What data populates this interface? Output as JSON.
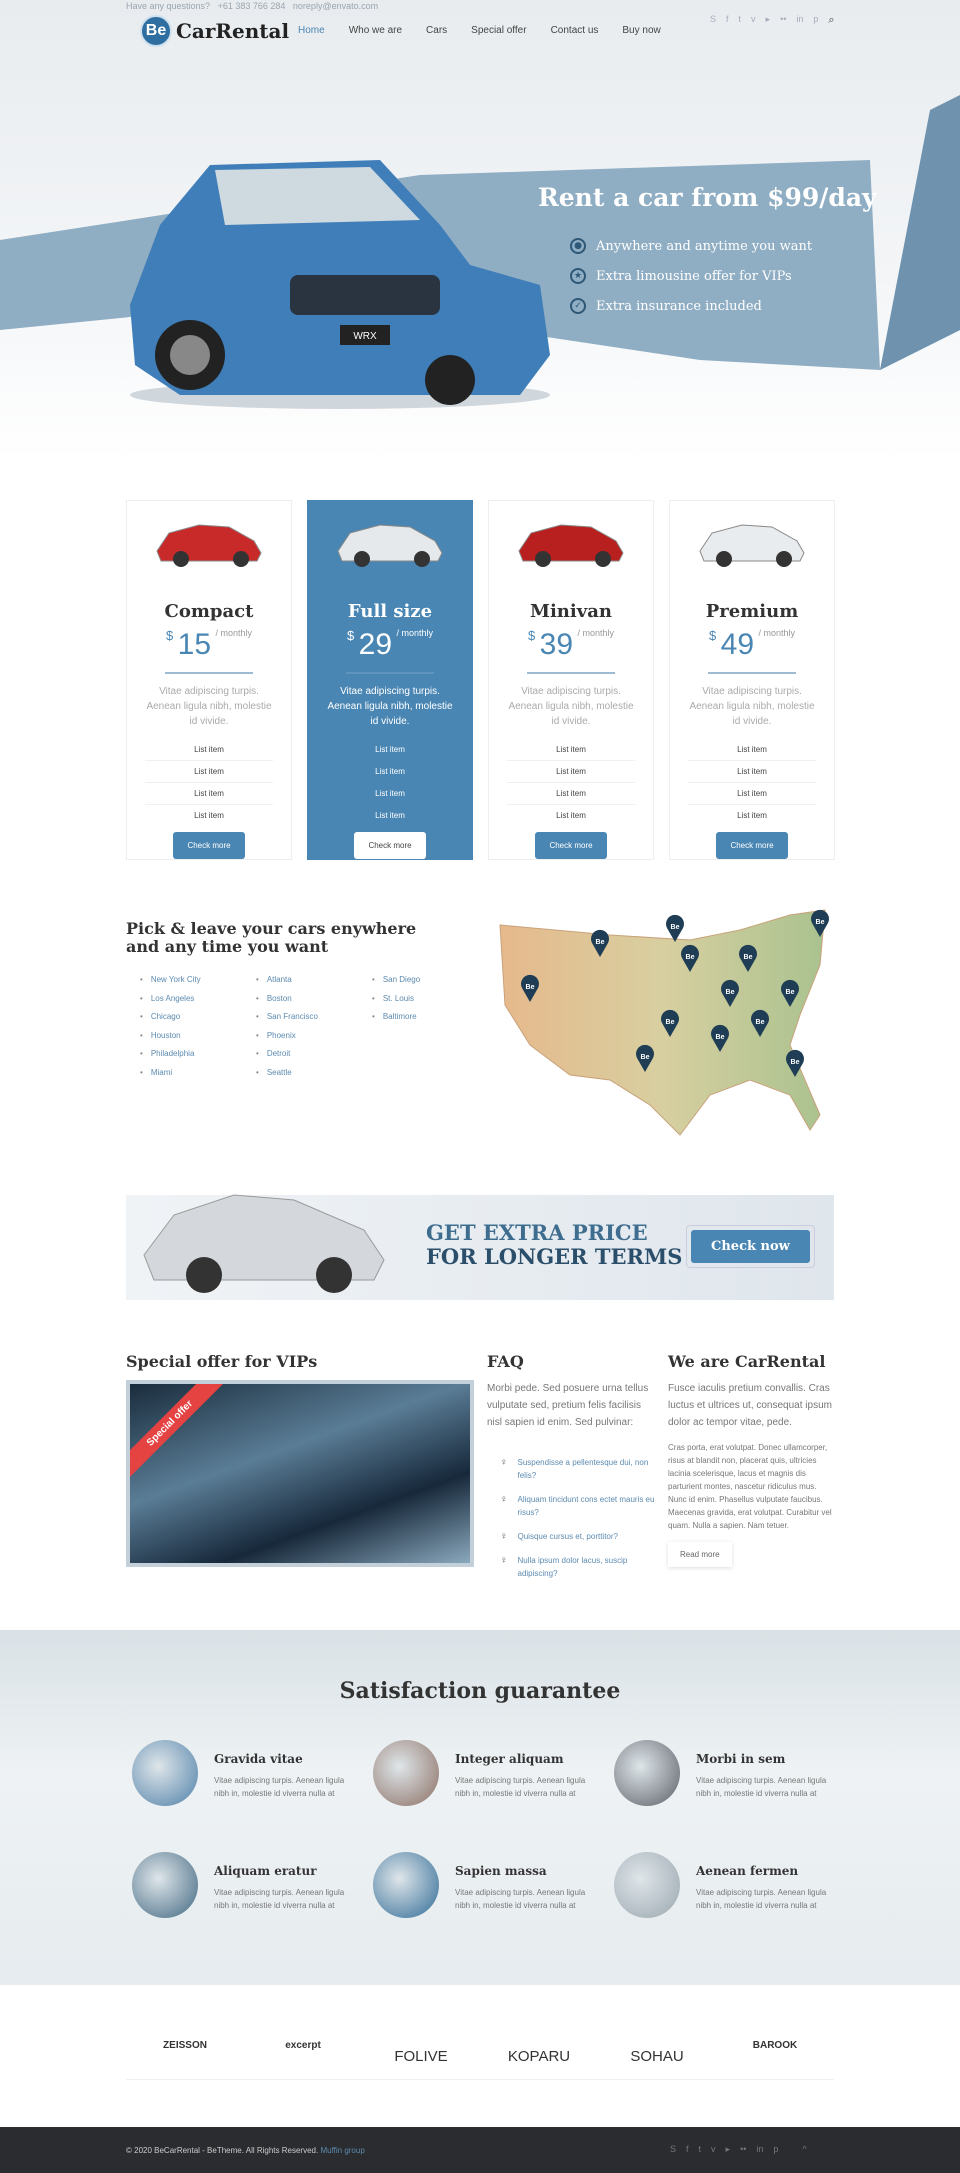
{
  "topbar": {
    "question": "Have any questions?",
    "phone": "+61 383 766 284",
    "email": "noreply@envato.com"
  },
  "logo": {
    "badge": "Be",
    "name": "CarRental"
  },
  "nav": [
    "Home",
    "Who we are",
    "Cars",
    "Special offer",
    "Contact us",
    "Buy now"
  ],
  "social": [
    "skype",
    "facebook",
    "twitter",
    "vimeo",
    "youtube",
    "flickr",
    "linkedin",
    "pinterest"
  ],
  "hero": {
    "headline": "Rent a car from $99/day",
    "car_plate": "WRX",
    "features": [
      "Anywhere and anytime you want",
      "Extra limousine offer for VIPs",
      "Extra insurance included"
    ]
  },
  "pricing": [
    {
      "name": "Compact",
      "currency": "$",
      "price": "15",
      "period": "/ monthly",
      "desc": "Vitae adipiscing turpis. Aenean ligula nibh, molestie id vivide.",
      "items": [
        "List item",
        "List item",
        "List item",
        "List item"
      ],
      "button": "Check more",
      "car_color": "#c82a2a",
      "highlight": false
    },
    {
      "name": "Full size",
      "currency": "$",
      "price": "29",
      "period": "/ monthly",
      "desc": "Vitae adipiscing turpis. Aenean ligula nibh, molestie id vivide.",
      "items": [
        "List item",
        "List item",
        "List item",
        "List item"
      ],
      "button": "Check more",
      "car_color": "#e6e9ec",
      "highlight": true
    },
    {
      "name": "Minivan",
      "currency": "$",
      "price": "39",
      "period": "/ monthly",
      "desc": "Vitae adipiscing turpis. Aenean ligula nibh, molestie id vivide.",
      "items": [
        "List item",
        "List item",
        "List item",
        "List item"
      ],
      "button": "Check more",
      "car_color": "#b8201f",
      "highlight": false
    },
    {
      "name": "Premium",
      "currency": "$",
      "price": "49",
      "period": "/ monthly",
      "desc": "Vitae adipiscing turpis. Aenean ligula nibh, molestie id vivide.",
      "items": [
        "List item",
        "List item",
        "List item",
        "List item"
      ],
      "button": "Check more",
      "car_color": "#e9ecef",
      "highlight": false
    }
  ],
  "locations": {
    "title": "Pick & leave your cars enywhere and any time you want",
    "cities": [
      "New York City",
      "Atlanta",
      "San Diego",
      "Los Angeles",
      "Boston",
      "St. Louis",
      "Chicago",
      "San Francisco",
      "Baltimore",
      "Houston",
      "Phoenix",
      "",
      "Philadelphia",
      "Detroit",
      "",
      "Miami",
      "Seattle",
      ""
    ],
    "pin_label": "Be"
  },
  "banner": {
    "line1": "GET EXTRA PRICE",
    "line2": "FOR LONGER TERMS",
    "button": "Check now"
  },
  "vip": {
    "title": "Special offer for VIPs",
    "ribbon": "Special offer"
  },
  "faq": {
    "title": "FAQ",
    "intro": "Morbi pede. Sed posuere urna tellus vulputate sed, pretium felis facilisis nisl sapien id enim. Sed pulvinar:",
    "items": [
      "Suspendisse a pellentesque dui, non felis?",
      "Aliquam tincidunt cons ectet mauris eu risus?",
      "Quisque cursus et, porttitor?",
      "Nulla ipsum dolor lacus, suscip adipiscing?"
    ]
  },
  "about": {
    "title": "We are CarRental",
    "lead": "Fusce iaculis pretium convallis. Cras luctus et ultrices ut, consequat ipsum dolor ac tempor vitae, pede.",
    "body": "Cras porta, erat volutpat. Donec ullamcorper, risus at blandit non, placerat quis, ultricies lacinia scelerisque, lacus et magnis dis parturient montes, nascetur ridiculus mus. Nunc id enim. Phasellus vulputate faucibus. Maecenas gravida, erat volutpat. Curabitur vel quam. Nulla a sapien. Nam tetuer.",
    "button": "Read more"
  },
  "satisfaction": {
    "title": "Satisfaction guarantee",
    "items": [
      {
        "title": "Gravida vitae",
        "text": "Vitae adipiscing turpis. Aenean ligula nibh in, molestie id viverra nulla at",
        "color": "#4e7fa8"
      },
      {
        "title": "Integer aliquam",
        "text": "Vitae adipiscing turpis. Aenean ligula nibh in, molestie id viverra nulla at",
        "color": "#8a6e62"
      },
      {
        "title": "Morbi in sem",
        "text": "Vitae adipiscing turpis. Aenean ligula nibh in, molestie id viverra nulla at",
        "color": "#5a5f66"
      },
      {
        "title": "Aliquam eratur",
        "text": "Vitae adipiscing turpis. Aenean ligula nibh in, molestie id viverra nulla at",
        "color": "#3f6680"
      },
      {
        "title": "Sapien massa",
        "text": "Vitae adipiscing turpis. Aenean ligula nibh in, molestie id viverra nulla at",
        "color": "#2f6a95"
      },
      {
        "title": "Aenean fermen",
        "text": "Vitae adipiscing turpis. Aenean ligula nibh in, molestie id viverra nulla at",
        "color": "#9aa6ae"
      }
    ]
  },
  "partners": [
    "ZEISSON",
    "excerpt",
    "FOLIVE",
    "KOPARU",
    "SOHAU",
    "BAROOK"
  ],
  "footer": {
    "copyright": "© 2020 BeCarRental - BeTheme. All Rights Reserved.",
    "link": "Muffin group",
    "back_to_top": "^"
  },
  "colors": {
    "accent": "#4a86b3",
    "ribbon": "#e54242",
    "footer_bg": "#2a2c2f"
  }
}
